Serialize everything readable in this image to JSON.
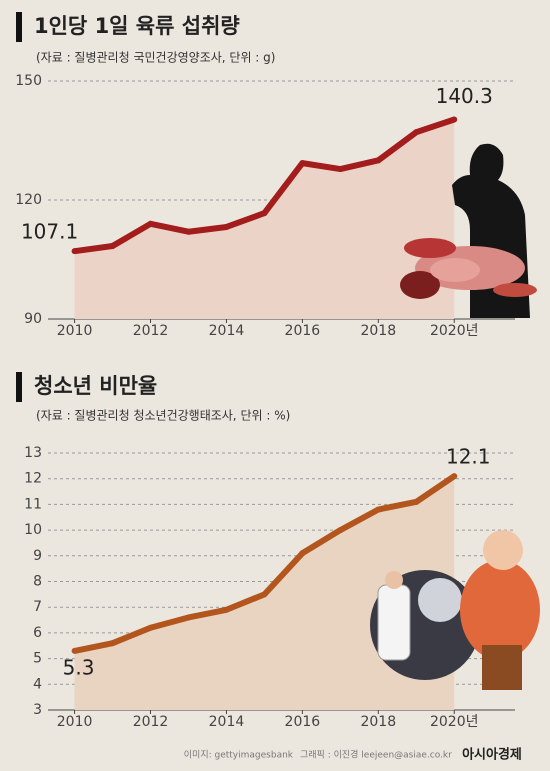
{
  "chart_data": [
    {
      "type": "line",
      "title": "1인당 1일 육류 섭취량",
      "subtitle": "(자료 : 질병관리청 국민건강영양조사, 단위 : g)",
      "x": [
        2010,
        2011,
        2012,
        2013,
        2014,
        2015,
        2016,
        2017,
        2018,
        2019,
        2020
      ],
      "series": [
        {
          "color": "#a31d1d",
          "values": [
            107.1,
            108.4,
            114,
            112,
            113.2,
            116.7,
            129.3,
            127.8,
            130,
            137.1,
            140.3
          ]
        }
      ],
      "area_color": "#ebd3c7",
      "xlim": [
        2009.3,
        2021.6
      ],
      "xticks": [
        2010,
        2012,
        2014,
        2016,
        2018,
        {
          "value": 2020,
          "label": "2020년"
        }
      ],
      "ylim": [
        90,
        150
      ],
      "yticks": [
        90,
        120,
        150
      ],
      "grid": true
    },
    {
      "type": "line",
      "title": "청소년 비만율",
      "subtitle": "(자료 : 질병관리청 청소년건강행태조사, 단위 : %)",
      "x": [
        2010,
        2011,
        2012,
        2013,
        2014,
        2015,
        2016,
        2017,
        2018,
        2019,
        2020
      ],
      "series": [
        {
          "color": "#b3561e",
          "values": [
            5.3,
            5.6,
            6.2,
            6.6,
            6.9,
            7.5,
            9.1,
            10.0,
            10.8,
            11.1,
            12.1
          ]
        }
      ],
      "area_color": "#e9d3c1",
      "xlim": [
        2009.3,
        2021.6
      ],
      "xticks": [
        2010,
        2012,
        2014,
        2016,
        2018,
        {
          "value": 2020,
          "label": "2020년"
        }
      ],
      "ylim": [
        3,
        13
      ],
      "yticks": [
        3,
        4,
        5,
        6,
        7,
        8,
        9,
        10,
        11,
        12,
        13
      ],
      "grid": true
    }
  ],
  "footer": {
    "image_credit": "이미지: gettyimagesbank",
    "graphic_credit": "그래픽 : 이진경 leejeen@asiae.co.kr",
    "brand": "아시아경제"
  }
}
